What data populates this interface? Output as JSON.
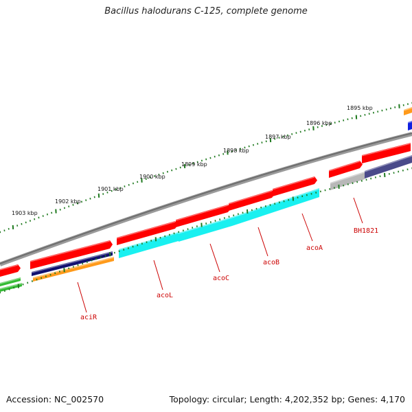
{
  "title": "Bacillus halodurans C-125, complete genome",
  "accession": "Accession: NC_002570",
  "summary": "Topology: circular; Length: 4,202,352 bp; Genes: 4,170",
  "colors": {
    "backbone": "#808080",
    "tick": "#1f7a1f",
    "label": "#cc0000",
    "cds": "#ff0000",
    "match_cyan": "#19f0f0",
    "match_navy": "#101070",
    "match_orange": "#ff9a1a",
    "match_green": "#33bb33",
    "match_gray": "#b8b8b8",
    "match_slate": "#4a4a8a",
    "match_blue": "#1020e0"
  },
  "kbp_labels": [
    "1895 kbp",
    "1896 kbp",
    "1897 kbp",
    "1898 kbp",
    "1899 kbp",
    "1900 kbp",
    "1901 kbp",
    "1902 kbp",
    "1903 kbp"
  ],
  "genes": [
    {
      "label": "aciR"
    },
    {
      "label": "acoL"
    },
    {
      "label": "acoC"
    },
    {
      "label": "acoB"
    },
    {
      "label": "acoA"
    },
    {
      "label": "BH1821"
    }
  ]
}
